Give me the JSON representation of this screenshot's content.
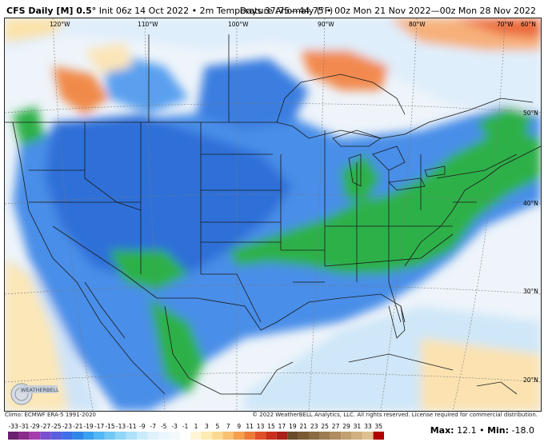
{
  "header": {
    "model": "CFS Daily [M] 0.5°",
    "init": "Init 06z 14 Oct 2022",
    "field": "2m Temperature Anomaly (°F)",
    "valid": "Days 37.75—44.75 • 00z Mon 21 Nov 2022—00z Mon 28 Nov 2022"
  },
  "map": {
    "longitudes": [
      "120°W",
      "110°W",
      "100°W",
      "90°W",
      "80°W",
      "70°W",
      "60°N"
    ],
    "latitudes": [
      "50°N",
      "40°N",
      "30°N",
      "20°N"
    ]
  },
  "footer": {
    "climo": "Climo: ECMWF ERA-5 1991-2020",
    "copyright": "© 2022 WeatherBELL Analytics, LLC. All rights reserved. License required for commercial distribution.",
    "logo": "WEATHERBELL",
    "max_label": "Max:",
    "max_value": "12.1",
    "min_label": "Min:",
    "min_value": "-18.0"
  },
  "legend": {
    "ticks": [
      "-33",
      "-31",
      "-29",
      "-27",
      "-25",
      "-23",
      "-21",
      "-19",
      "-17",
      "-15",
      "-13",
      "-11",
      "-9",
      "-7",
      "-5",
      "-3",
      "-1",
      "1",
      "3",
      "5",
      "7",
      "9",
      "11",
      "13",
      "15",
      "17",
      "19",
      "21",
      "23",
      "25",
      "27",
      "29",
      "31",
      "33",
      "35"
    ],
    "colors": [
      "#6b1f6f",
      "#8a2a8a",
      "#a63bb0",
      "#7a4fd0",
      "#5a5fe0",
      "#3f6fe8",
      "#2f86e8",
      "#3aa0f0",
      "#52b8f5",
      "#72c8f5",
      "#90d6f8",
      "#aee2fa",
      "#c8ecfb",
      "#dff2fc",
      "#eaf6ff",
      "#f3f8fc",
      "#ffffff",
      "#fff5d6",
      "#fdebb0",
      "#fbd990",
      "#f8c070",
      "#f5a050",
      "#ee7a38",
      "#e05028",
      "#c8301c",
      "#a82018",
      "#6a4b2a",
      "#7a5a34",
      "#8a6a40",
      "#9c7c50",
      "#b08c60",
      "#c0a070",
      "#d0b080",
      "#e0c090",
      "#b00000"
    ],
    "accent_cold": "#2f6fd8",
    "accent_green": "#2fb04a",
    "accent_warm": "#e06a30"
  }
}
